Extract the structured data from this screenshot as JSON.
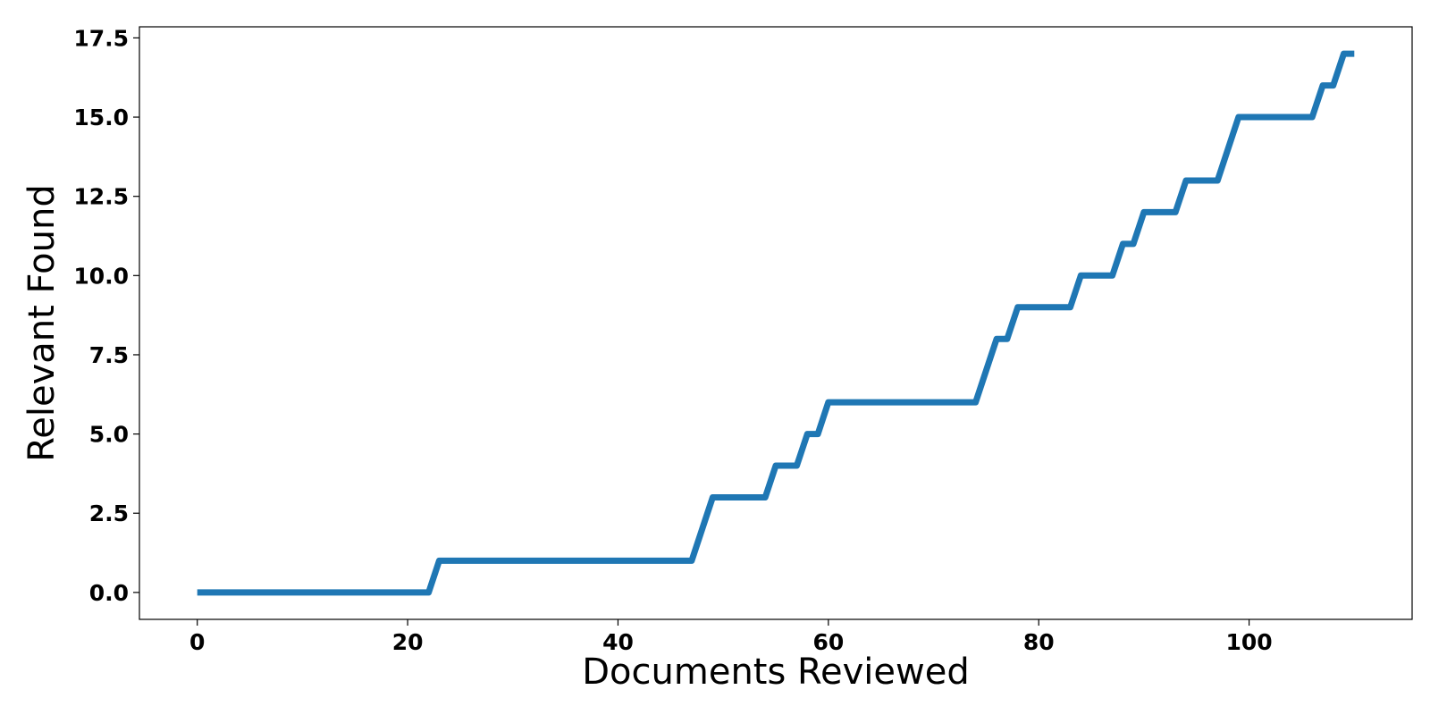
{
  "chart_data": {
    "type": "line",
    "title": "",
    "xlabel": "Documents Reviewed",
    "ylabel": "Relevant Found",
    "xlim": [
      -5.5,
      115.5
    ],
    "ylim": [
      -0.85,
      17.85
    ],
    "xticks": [
      0,
      20,
      40,
      60,
      80,
      100
    ],
    "xtick_labels": [
      "0",
      "20",
      "40",
      "60",
      "80",
      "100"
    ],
    "yticks": [
      0,
      2.5,
      5,
      7.5,
      10,
      12.5,
      15,
      17.5
    ],
    "ytick_labels": [
      "0.0",
      "2.5",
      "5.0",
      "7.5",
      "10.0",
      "12.5",
      "15.0",
      "17.5"
    ],
    "grid": false,
    "series": [
      {
        "color": "#1f77b4",
        "x": [
          0,
          22,
          23,
          47,
          49,
          54,
          55,
          57,
          58,
          59,
          60,
          74,
          76,
          77,
          78,
          83,
          84,
          87,
          88,
          89,
          90,
          93,
          94,
          97,
          99,
          106,
          107,
          108,
          109,
          110
        ],
        "y": [
          0,
          0,
          1,
          1,
          3,
          3,
          4,
          4,
          5,
          5,
          6,
          6,
          8,
          8,
          9,
          9,
          10,
          10,
          11,
          11,
          12,
          12,
          13,
          13,
          15,
          15,
          16,
          16,
          17,
          17
        ]
      }
    ]
  }
}
